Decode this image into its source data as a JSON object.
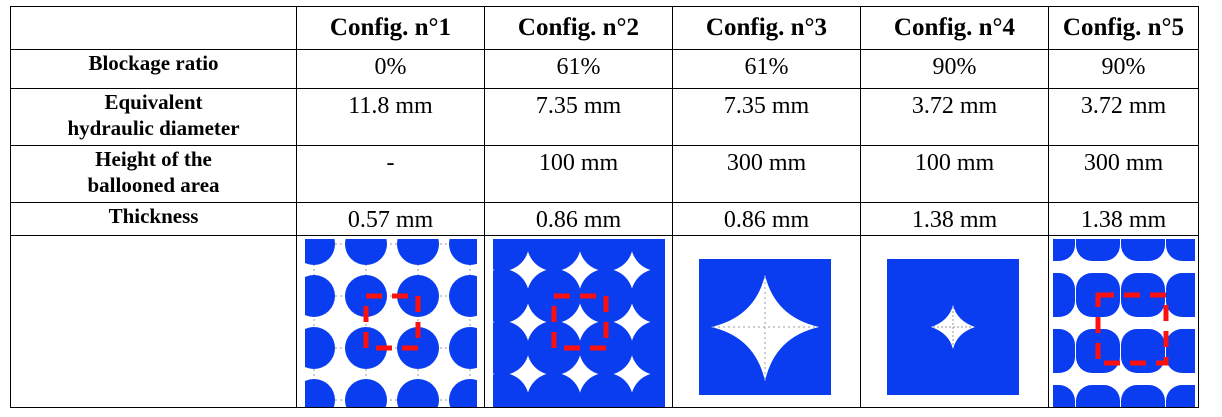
{
  "table": {
    "headers": [
      "",
      "Config. n°1",
      "Config. n°2",
      "Config. n°3",
      "Config. n°4",
      "Config. n°5"
    ],
    "rows": [
      {
        "label": "Blockage ratio",
        "values": [
          "0%",
          "61%",
          "61%",
          "90%",
          "90%"
        ]
      },
      {
        "label": "Equivalent hydraulic diameter",
        "values": [
          "11.8 mm",
          "7.35 mm",
          "7.35 mm",
          "3.72 mm",
          "3.72 mm"
        ]
      },
      {
        "label": "Height of the ballooned area",
        "values": [
          "-",
          "100 mm",
          "300 mm",
          "100 mm",
          "300 mm"
        ]
      },
      {
        "label": "Thickness",
        "values": [
          "0.57 mm",
          "0.86 mm",
          "0.86 mm",
          "1.38 mm",
          "1.38 mm"
        ]
      }
    ],
    "row_label_lines": [
      [
        "Blockage ratio"
      ],
      [
        "Equivalent",
        "hydraulic diameter"
      ],
      [
        "Height of the",
        "ballooned area"
      ],
      [
        "Thickness"
      ]
    ]
  },
  "images": [
    {
      "icon": "rod-array-config-1-icon"
    },
    {
      "icon": "rod-array-config-2-icon"
    },
    {
      "icon": "subchannel-config-3-icon"
    },
    {
      "icon": "subchannel-config-4-icon"
    },
    {
      "icon": "rod-array-config-5-icon"
    }
  ],
  "colors": {
    "fill": "#0a3cf0",
    "dashed_box": "#ff1010",
    "grid": "#9a9a9a"
  }
}
